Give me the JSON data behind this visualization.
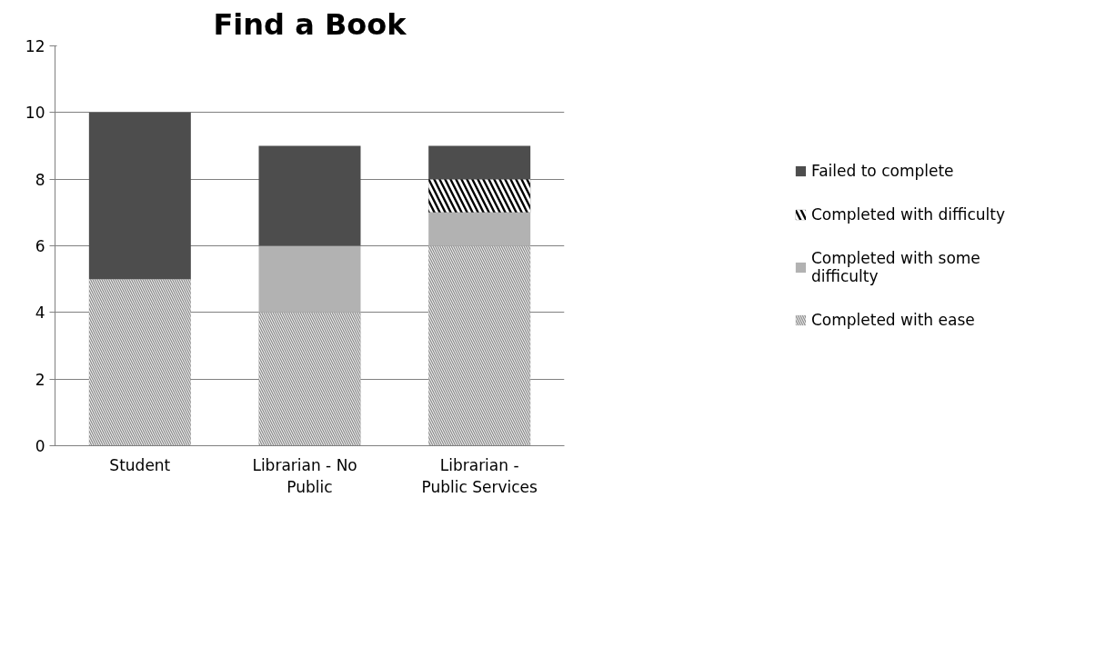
{
  "chart_data": {
    "type": "bar",
    "title": "Find a Book",
    "stacked": true,
    "categories": [
      "Student",
      "Librarian -   No\nPublic",
      "Librarian -\nPublic Services"
    ],
    "series": [
      {
        "name": "Completed with ease",
        "color": "#8c8c8c",
        "values": [
          5,
          4,
          6
        ]
      },
      {
        "name": "Completed with some\ndifficulty",
        "color": "#b2b2b2",
        "values": [
          0,
          2,
          1
        ]
      },
      {
        "name": "Completed with difficulty",
        "color": "#000000",
        "values": [
          0,
          0,
          1
        ]
      },
      {
        "name": "Failed to complete",
        "color": "#4d4d4d",
        "values": [
          5,
          3,
          1
        ]
      }
    ],
    "ylim": [
      0,
      12
    ],
    "yticks": [
      0,
      2,
      4,
      6,
      8,
      10,
      12
    ],
    "grid": "y",
    "legend": "right"
  }
}
